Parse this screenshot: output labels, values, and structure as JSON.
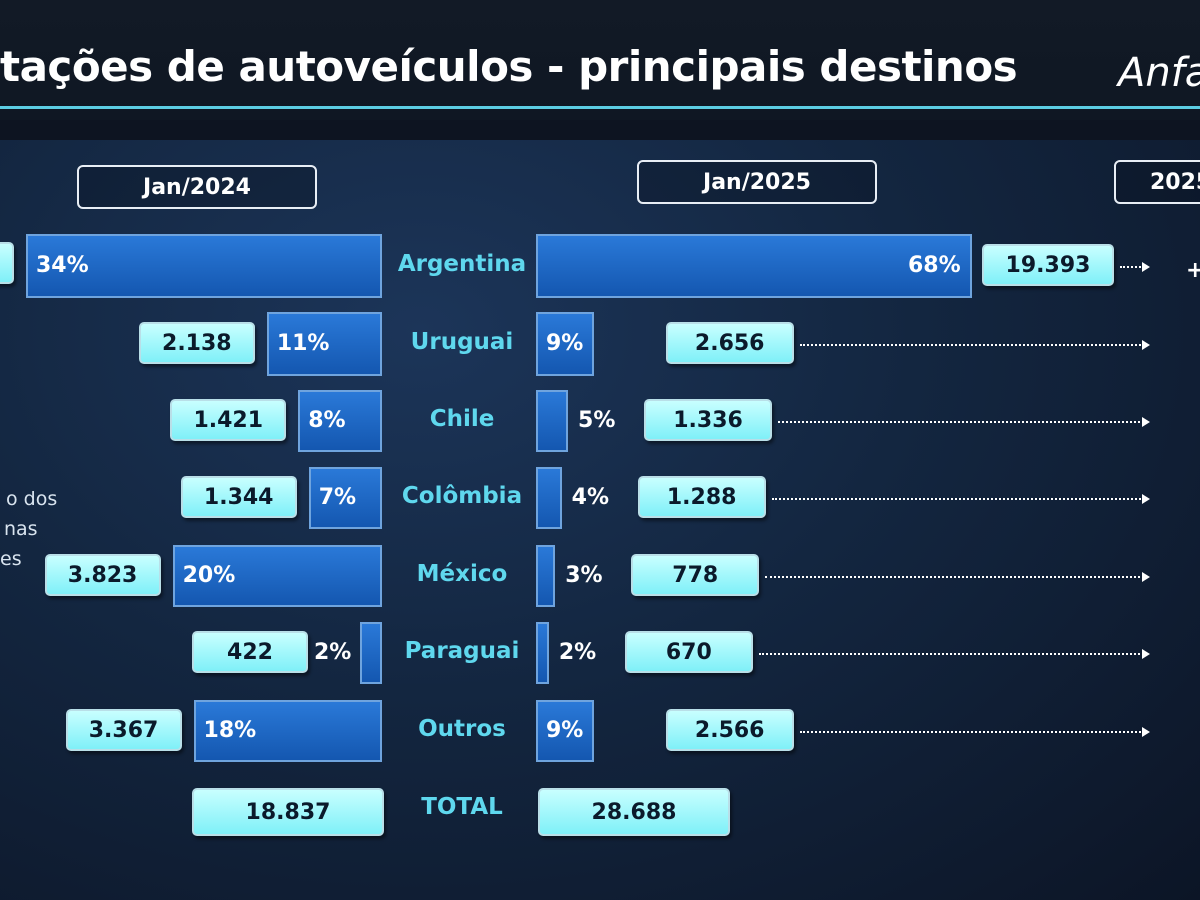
{
  "header": {
    "title": "tações de autoveículos - principais destinos",
    "logo": "Anfa"
  },
  "periods": {
    "left": "Jan/2024",
    "right": "Jan/2025",
    "far_right": "2025"
  },
  "side_note": [
    "o dos",
    "nas",
    "es"
  ],
  "far_right_symbol": "+",
  "chart_data": {
    "type": "bar",
    "title": "",
    "categories": [
      "Argentina",
      "Uruguai",
      "Chile",
      "Colômbia",
      "México",
      "Paraguai",
      "Outros"
    ],
    "series": [
      {
        "name": "Jan/2024",
        "percent_labels": [
          "34%",
          "11%",
          "8%",
          "7%",
          "20%",
          "2%",
          "18%"
        ],
        "percent_values": [
          34,
          11,
          8,
          7,
          20,
          2,
          18
        ],
        "value_labels": [
          "",
          "2.138",
          "1.421",
          "1.344",
          "3.823",
          "422",
          "3.367"
        ]
      },
      {
        "name": "Jan/2025",
        "percent_labels": [
          "68%",
          "9%",
          "5%",
          "4%",
          "3%",
          "2%",
          "9%"
        ],
        "percent_values": [
          68,
          9,
          5,
          4,
          3,
          2,
          9
        ],
        "value_labels": [
          "19.393",
          "2.656",
          "1.336",
          "1.288",
          "778",
          "670",
          "2.566"
        ]
      }
    ],
    "total": {
      "label": "TOTAL",
      "left": "18.837",
      "right": "28.688"
    }
  },
  "colors": {
    "bar": "#1e6ac6",
    "value_box": "#a8f8ff",
    "country_text": "#5fd8ee",
    "accent_line": "#5ccde3"
  }
}
